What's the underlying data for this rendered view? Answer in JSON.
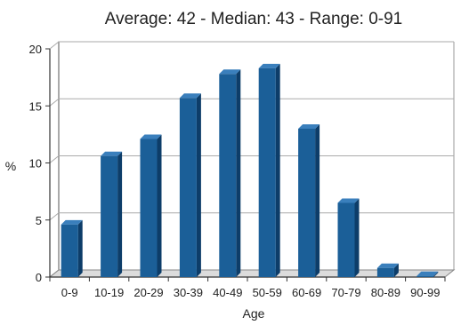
{
  "chart_data": {
    "type": "bar",
    "title": "Average: 42  -  Median: 43  -  Range: 0-91",
    "xlabel": "Age",
    "ylabel": "%",
    "categories": [
      "0-9",
      "10-19",
      "20-29",
      "30-39",
      "40-49",
      "50-59",
      "60-69",
      "70-79",
      "80-89",
      "90-99"
    ],
    "values": [
      4.6,
      10.6,
      12.1,
      15.7,
      17.8,
      18.3,
      13.0,
      6.5,
      0.8,
      0.1
    ],
    "ylim": [
      0,
      20
    ],
    "yticks": [
      0,
      5,
      10,
      15,
      20
    ],
    "grid": true,
    "legend": "none",
    "colors": {
      "bar": "#1b5f98",
      "bar_side": "#0d3d69",
      "bar_top": "#3a7fbc",
      "grid": "#aaaaaa",
      "floor": "#dcdcdc"
    }
  }
}
